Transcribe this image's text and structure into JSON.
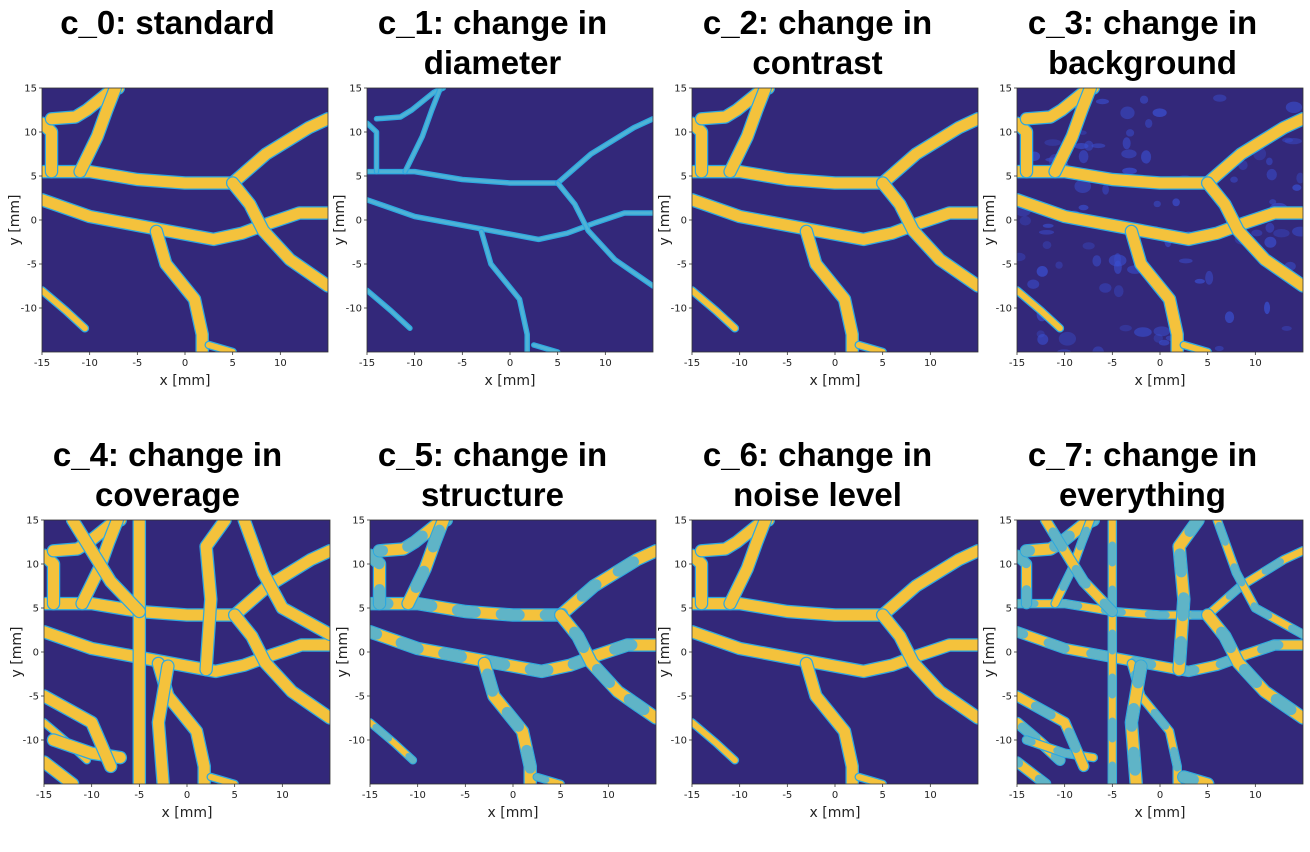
{
  "colors": {
    "background": "#33287a",
    "vessel": "#f4c23c",
    "vessel_edge": "#2ea8e0",
    "mid": "#4fb3d6"
  },
  "chart_data": [
    {
      "type": "heatmap",
      "title": "c_0: standard",
      "title_lines": [
        "c_0: standard"
      ],
      "xlabel": "x [mm]",
      "ylabel": "y [mm]",
      "xlim": [
        -15,
        15
      ],
      "ylim": [
        -15,
        15
      ],
      "xticks": [
        -15,
        -10,
        -5,
        0,
        5,
        10
      ],
      "yticks": [
        15,
        10,
        5,
        0,
        -5,
        -10
      ],
      "colormap": "viridis",
      "vessel_diameter": "standard",
      "texture": "solid",
      "background_texture": "flat"
    },
    {
      "type": "heatmap",
      "title": "c_1: change in diameter",
      "title_lines": [
        "c_1: change in",
        "diameter"
      ],
      "xlabel": "x [mm]",
      "ylabel": "y [mm]",
      "xlim": [
        -15,
        15
      ],
      "ylim": [
        -15,
        15
      ],
      "xticks": [
        -15,
        -10,
        -5,
        0,
        5,
        10
      ],
      "yticks": [
        15,
        10,
        5,
        0,
        -5,
        -10
      ],
      "colormap": "viridis",
      "vessel_diameter": "thin",
      "texture": "solid",
      "background_texture": "flat"
    },
    {
      "type": "heatmap",
      "title": "c_2: change in contrast",
      "title_lines": [
        "c_2: change in",
        "contrast"
      ],
      "xlabel": "x [mm]",
      "ylabel": "y [mm]",
      "xlim": [
        -15,
        15
      ],
      "ylim": [
        -15,
        15
      ],
      "xticks": [
        -15,
        -10,
        -5,
        0,
        5,
        10
      ],
      "yticks": [
        15,
        10,
        5,
        0,
        -5,
        -10
      ],
      "colormap": "viridis",
      "vessel_diameter": "standard",
      "texture": "solid",
      "background_texture": "flat"
    },
    {
      "type": "heatmap",
      "title": "c_3: change in background",
      "title_lines": [
        "c_3: change in",
        "background"
      ],
      "xlabel": "x [mm]",
      "ylabel": "y [mm]",
      "xlim": [
        -15,
        15
      ],
      "ylim": [
        -15,
        15
      ],
      "xticks": [
        -15,
        -10,
        -5,
        0,
        5,
        10
      ],
      "yticks": [
        15,
        10,
        5,
        0,
        -5,
        -10
      ],
      "colormap": "viridis",
      "vessel_diameter": "standard",
      "texture": "solid",
      "background_texture": "mottled"
    },
    {
      "type": "heatmap",
      "title": "c_4: change in coverage",
      "title_lines": [
        "c_4: change in",
        "coverage"
      ],
      "xlabel": "x [mm]",
      "ylabel": "y [mm]",
      "xlim": [
        -15,
        15
      ],
      "ylim": [
        -15,
        15
      ],
      "xticks": [
        -15,
        -10,
        -5,
        0,
        5,
        10
      ],
      "yticks": [
        15,
        10,
        5,
        0,
        -5,
        -10
      ],
      "colormap": "viridis",
      "vessel_diameter": "standard",
      "texture": "solid",
      "background_texture": "flat",
      "extra_vessels": true
    },
    {
      "type": "heatmap",
      "title": "c_5: change in structure",
      "title_lines": [
        "c_5: change in",
        "structure"
      ],
      "xlabel": "x [mm]",
      "ylabel": "y [mm]",
      "xlim": [
        -15,
        15
      ],
      "ylim": [
        -15,
        15
      ],
      "xticks": [
        -15,
        -10,
        -5,
        0,
        5,
        10
      ],
      "yticks": [
        15,
        10,
        5,
        0,
        -5,
        -10
      ],
      "colormap": "viridis",
      "vessel_diameter": "standard",
      "texture": "patchy",
      "background_texture": "flat"
    },
    {
      "type": "heatmap",
      "title": "c_6: change in noise level",
      "title_lines": [
        "c_6: change in",
        "noise level"
      ],
      "xlabel": "x [mm]",
      "ylabel": "y [mm]",
      "xlim": [
        -15,
        15
      ],
      "ylim": [
        -15,
        15
      ],
      "xticks": [
        -15,
        -10,
        -5,
        0,
        5,
        10
      ],
      "yticks": [
        15,
        10,
        5,
        0,
        -5,
        -10
      ],
      "colormap": "viridis",
      "vessel_diameter": "standard",
      "texture": "solid",
      "background_texture": "flat"
    },
    {
      "type": "heatmap",
      "title": "c_7: change in everything",
      "title_lines": [
        "c_7: change in",
        "everything"
      ],
      "xlabel": "x [mm]",
      "ylabel": "y [mm]",
      "xlim": [
        -15,
        15
      ],
      "ylim": [
        -15,
        15
      ],
      "xticks": [
        -15,
        -10,
        -5,
        0,
        5,
        10
      ],
      "yticks": [
        15,
        10,
        5,
        0,
        -5,
        -10
      ],
      "colormap": "viridis",
      "vessel_diameter": "varied",
      "texture": "patchy",
      "background_texture": "flat",
      "extra_vessels": true
    }
  ]
}
